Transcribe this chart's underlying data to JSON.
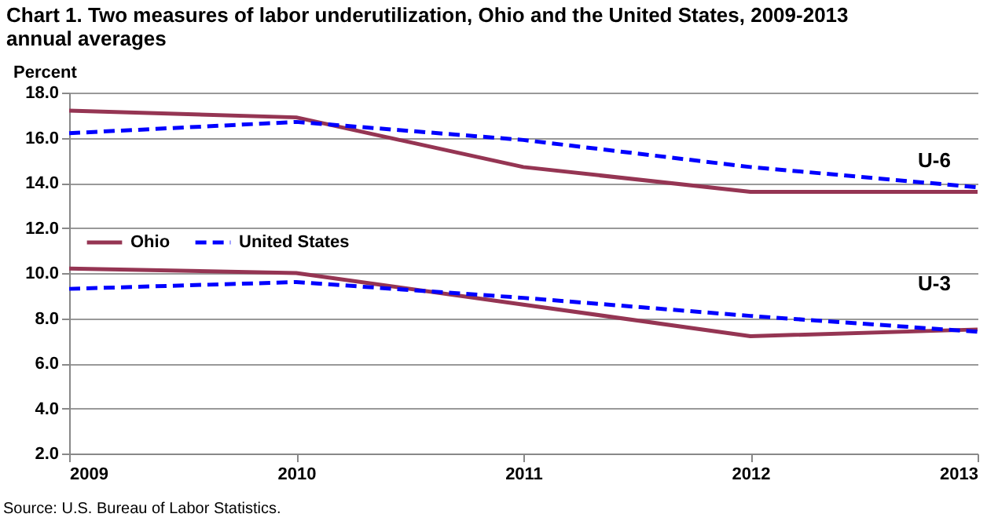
{
  "chart_data": {
    "type": "line",
    "title": "Chart 1. Two measures of labor underutilization, Ohio and the United States, 2009-2013 annual  averages",
    "ylabel": "Percent",
    "x": [
      2009,
      2010,
      2011,
      2012,
      2013
    ],
    "series": [
      {
        "name": "Ohio",
        "color": "#953553",
        "line_style": "solid",
        "values": [
          17.2,
          16.9,
          14.7,
          13.6,
          13.6
        ]
      },
      {
        "name": "United States",
        "color": "#0000ff",
        "line_style": "dashed",
        "values": [
          16.2,
          16.7,
          15.9,
          14.7,
          13.8
        ]
      },
      {
        "color": "#953553",
        "line_style": "solid",
        "values": [
          10.2,
          10.0,
          8.6,
          7.2,
          7.5
        ]
      },
      {
        "color": "#0000ff",
        "line_style": "dashed",
        "values": [
          9.3,
          9.6,
          8.9,
          8.1,
          7.4
        ]
      }
    ],
    "xlim": [
      2009,
      2013
    ],
    "xticks": [
      2009,
      2010,
      2011,
      2012,
      2013
    ],
    "ylim": [
      2,
      18
    ],
    "yticks": [
      {
        "value": 2,
        "label": "2.0"
      },
      {
        "value": 4,
        "label": "4.0"
      },
      {
        "value": 6,
        "label": "6.0"
      },
      {
        "value": 8,
        "label": "8.0"
      },
      {
        "value": 10,
        "label": "10.0"
      },
      {
        "value": 12,
        "label": "12.0"
      },
      {
        "value": 14,
        "label": "14.0"
      },
      {
        "value": 16,
        "label": "16.0"
      },
      {
        "value": 18,
        "label": "18.0"
      }
    ],
    "grid": "y",
    "legend": "left",
    "marker": "none",
    "annotations": [
      "U-6",
      "U-3",
      "Source: U.S. Bureau of Labor Statistics."
    ]
  }
}
